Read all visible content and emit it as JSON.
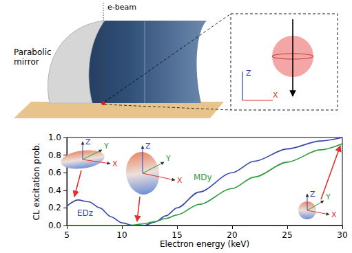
{
  "chart_data": {
    "type": "line",
    "x_label": "Electron energy (keV)",
    "y_label": "CL excitation prob.",
    "x": [
      5,
      6,
      7,
      8,
      9,
      10,
      11,
      12,
      13,
      14,
      15,
      17,
      20,
      22,
      25,
      28,
      30
    ],
    "series": [
      {
        "name": "EDz",
        "color": "#3547a8",
        "values": [
          0.22,
          0.29,
          0.27,
          0.2,
          0.1,
          0.03,
          0.0,
          0.0,
          0.04,
          0.11,
          0.2,
          0.38,
          0.6,
          0.73,
          0.87,
          0.96,
          1.0
        ]
      },
      {
        "name": "MDy",
        "color": "#2e9a3e",
        "values": [
          0,
          0,
          0,
          0,
          0,
          0,
          0.005,
          0.02,
          0.045,
          0.08,
          0.12,
          0.24,
          0.42,
          0.55,
          0.72,
          0.86,
          0.93
        ]
      }
    ],
    "xlim": [
      5,
      30
    ],
    "xticks": [
      5,
      10,
      15,
      20,
      25,
      30
    ],
    "ylim": [
      0,
      1
    ],
    "yticks": [
      {
        "value": 0,
        "label": "0.0"
      },
      0.2,
      0.4,
      0.6,
      0.8,
      {
        "value": 1,
        "label": "1.0"
      }
    ],
    "grid": false
  },
  "pattern_insets": [
    [
      "Z",
      "Y",
      "X"
    ],
    [
      "Z",
      "Y",
      "X"
    ],
    [
      "Z",
      "Y",
      "X"
    ]
  ],
  "diagram": {
    "mirror_label": "Parabolic mirror",
    "beam_label": "e-beam",
    "inset_axes": [
      "Z",
      "X"
    ]
  }
}
